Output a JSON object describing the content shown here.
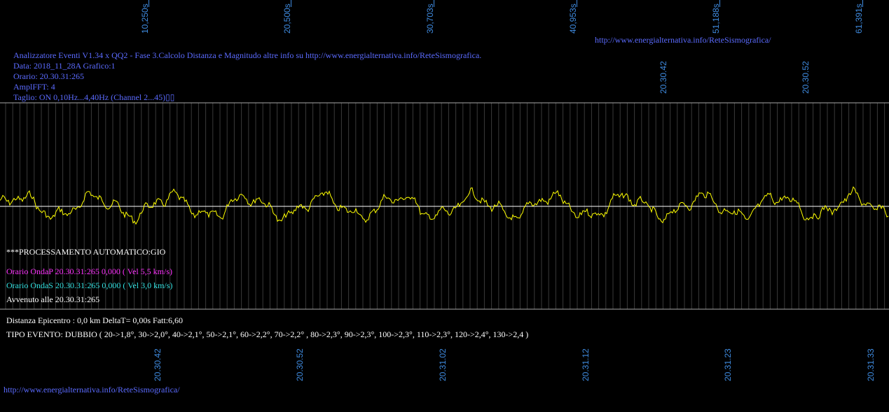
{
  "top_link": "http://www.energialternativa.info/ReteSismografica/",
  "bottom_link": "http://www.energialternativa.info/ReteSismografica/",
  "header": {
    "line1": "Analizzatore Eventi V1.34 x QQ2 - Fase 3.Calcolo Distanza e Magnitudo altre info su http://www.energialternativa.info/ReteSismografica.",
    "line2": "Data: 2018_11_28A Grafico:1",
    "line3": "Orario: 20.30.31:265",
    "line4": "AmplFFT: 4",
    "line5": "Taglio: ON 0,10Hz...4,40Hz      (Channel 2...45)▯▯"
  },
  "top_ticks": [
    "10,250s",
    "20,500s",
    "30,703s",
    "40,953s",
    "51,188s",
    "61,391s"
  ],
  "mid_ticks": [
    "20.30.42",
    "20.30.52"
  ],
  "bottom_ticks": [
    "20.30.42",
    "20.30.52",
    "20.31.02",
    "20.31.12",
    "20.31.23",
    "20.31.33"
  ],
  "processing": "***PROCESSAMENTO AUTOMATICO:GIO",
  "onda_p": "Orario OndaP 20.30.31:265  0,000 ( Vel 5,5 km/s)",
  "onda_s": "Orario OndaS 20.30.31:265  0,000 ( Vel 3,0 km/s)",
  "avvenuto": "Avvenuto alle 20.30.31:265",
  "distanza": "Distanza Epicentro : 0,0 km DeltaT= 0,00s  Fatt:6,60",
  "tipo_evento": "TIPO EVENTO: DUBBIO ( 20->1,8°, 30->2,0°, 40->2,1°, 50->2,1°, 60->2,2°, 70->2,2° , 80->2,3°, 90->2,3°, 100->2,3°, 110->2,3°, 120->2,4°, 130->2,4 )",
  "colors": {
    "background": "#000000",
    "header_text": "#5b6bff",
    "tick_text": "#3f8be0",
    "trace": "#ffff00",
    "grid": "#a8a8a8",
    "onda_p": "#ff33ff",
    "onda_s": "#33e0e0",
    "info_text": "#ffffff"
  }
}
